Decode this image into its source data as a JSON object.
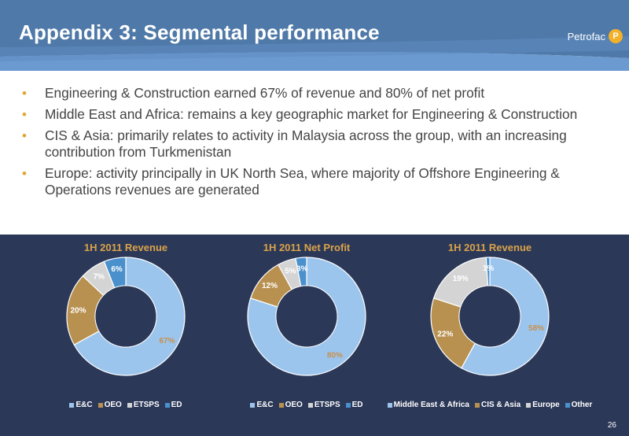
{
  "slide": {
    "title": "Appendix 3: Segmental performance",
    "logo_text": "Petrofac",
    "logo_mark": "P",
    "page_number": "26"
  },
  "bullets": [
    "Engineering & Construction earned 67% of revenue and 80% of net profit",
    "Middle East and Africa: remains a key geographic market for Engineering & Construction",
    "CIS & Asia: primarily relates to activity in Malaysia across the group, with an increasing contribution from Turkmenistan",
    "Europe: activity principally in UK North Sea, where majority of Offshore Engineering & Operations revenues are generated"
  ],
  "colors": {
    "header_dark": "#4f79a8",
    "header_light": "#6b9ad0",
    "panel_bg": "#2c3858",
    "title_gold": "#d9a34a",
    "bullet_gold": "#e1a32d",
    "series": [
      "#9cc5ee",
      "#b89150",
      "#d4d4d4",
      "#4a90cc"
    ]
  },
  "chart_data": [
    {
      "type": "pie",
      "title": "1H 2011 Revenue",
      "categories": [
        "E&C",
        "OEO",
        "ETSPS",
        "ED"
      ],
      "values": [
        67,
        20,
        7,
        6
      ],
      "labels": [
        "67%",
        "20%",
        "7%",
        "6%"
      ],
      "legend": "bottom"
    },
    {
      "type": "pie",
      "title": "1H 2011 Net Profit",
      "categories": [
        "E&C",
        "OEO",
        "ETSPS",
        "ED"
      ],
      "values": [
        80,
        12,
        5,
        3
      ],
      "labels": [
        "80%",
        "12%",
        "5%",
        "3%"
      ],
      "legend": "bottom"
    },
    {
      "type": "pie",
      "title": "1H 2011 Revenue",
      "categories": [
        "Middle East & Africa",
        "CIS & Asia",
        "Europe",
        "Other"
      ],
      "values": [
        58,
        22,
        19,
        1
      ],
      "labels": [
        "58%",
        "22%",
        "19%",
        "1%"
      ],
      "legend": "bottom"
    }
  ]
}
